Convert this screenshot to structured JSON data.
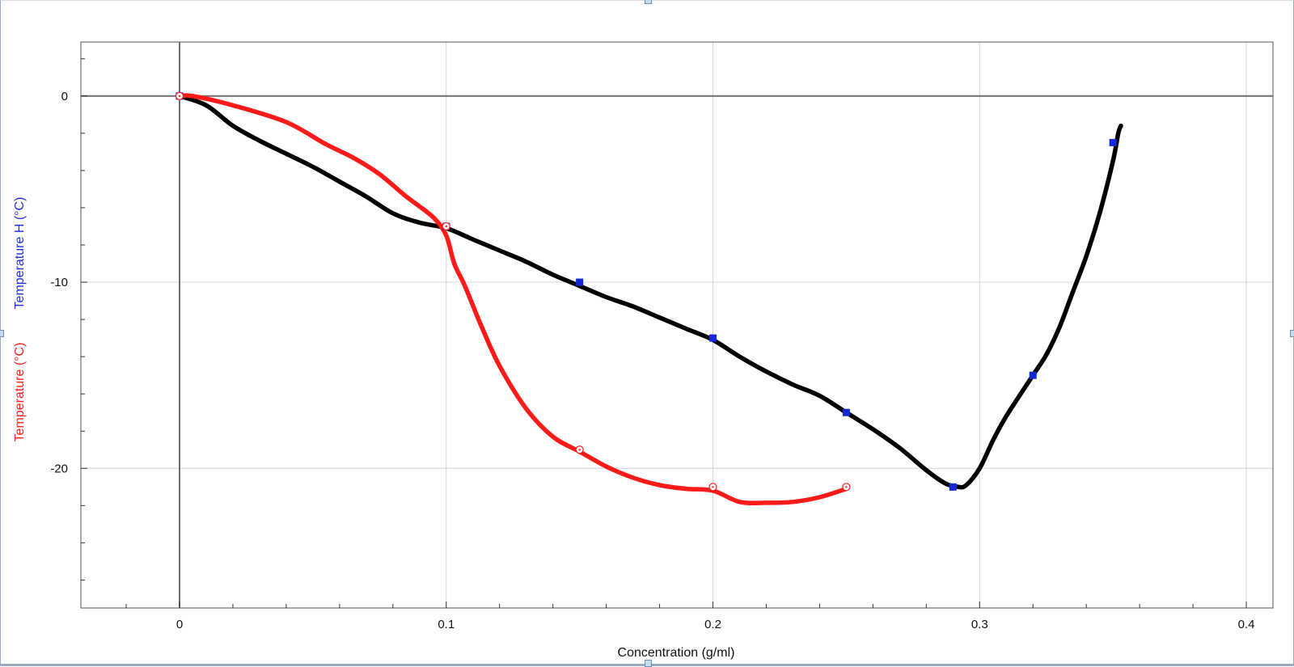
{
  "colors": {
    "red_series": "#ff1a1a",
    "black_series": "#000000",
    "marker_blue": "#1428d8",
    "ylabel_blue": "#2231dd",
    "ylabel_red": "#ff2020",
    "grid": "#d4d4d4",
    "zero_axis": "#6e6e6e",
    "frame": "#555555"
  },
  "icons": {
    "square_marker": "blue-square-marker-icon",
    "circle_marker": "red-circle-dot-marker-icon",
    "selection_handle": "selection-handle-icon"
  },
  "chart_data": {
    "type": "line",
    "xlabel": "Concentration (g/ml)",
    "ylabels": [
      "Temperature H (°C)",
      "Temperature (°C)"
    ],
    "xlim": [
      -0.037,
      0.41
    ],
    "ylim": [
      -27.5,
      2.9
    ],
    "x_ticks": [
      0,
      0.1,
      0.2,
      0.3,
      0.4
    ],
    "x_tick_labels": [
      "0",
      "0.1",
      "0.2",
      "0.3",
      "0.4"
    ],
    "x_minor_ticks": [
      -0.02,
      0.02,
      0.04,
      0.06,
      0.08,
      0.12,
      0.14,
      0.16,
      0.18,
      0.22,
      0.24,
      0.26,
      0.28,
      0.32,
      0.34,
      0.36,
      0.38
    ],
    "y_ticks": [
      0,
      -10,
      -20
    ],
    "y_tick_labels": [
      "0",
      "-10",
      "-20"
    ],
    "y_minor_ticks": [
      2,
      -2,
      -4,
      -6,
      -8,
      -12,
      -14,
      -16,
      -18,
      -22,
      -24,
      -26
    ],
    "grid": true,
    "series": [
      {
        "label_color": "ylabel_blue",
        "color": "black_series",
        "marker": "square",
        "marker_color": "marker_blue",
        "points": [
          [
            0,
            0
          ],
          [
            0.1,
            -7
          ],
          [
            0.15,
            -10
          ],
          [
            0.2,
            -13
          ],
          [
            0.25,
            -17
          ],
          [
            0.29,
            -21
          ],
          [
            0.32,
            -15
          ],
          [
            0.35,
            -2.5
          ]
        ],
        "curve": [
          [
            0,
            0
          ],
          [
            0.01,
            -0.5
          ],
          [
            0.02,
            -1.6
          ],
          [
            0.03,
            -2.4
          ],
          [
            0.04,
            -3.1
          ],
          [
            0.05,
            -3.8
          ],
          [
            0.06,
            -4.6
          ],
          [
            0.07,
            -5.4
          ],
          [
            0.08,
            -6.3
          ],
          [
            0.09,
            -6.8
          ],
          [
            0.1,
            -7.1
          ],
          [
            0.11,
            -7.7
          ],
          [
            0.12,
            -8.3
          ],
          [
            0.13,
            -8.9
          ],
          [
            0.14,
            -9.6
          ],
          [
            0.15,
            -10.2
          ],
          [
            0.16,
            -10.8
          ],
          [
            0.17,
            -11.3
          ],
          [
            0.18,
            -11.9
          ],
          [
            0.19,
            -12.5
          ],
          [
            0.2,
            -13.1
          ],
          [
            0.21,
            -14
          ],
          [
            0.22,
            -14.8
          ],
          [
            0.23,
            -15.5
          ],
          [
            0.24,
            -16.1
          ],
          [
            0.25,
            -17
          ],
          [
            0.26,
            -17.9
          ],
          [
            0.27,
            -18.9
          ],
          [
            0.28,
            -20.1
          ],
          [
            0.287,
            -20.8
          ],
          [
            0.292,
            -21
          ],
          [
            0.295,
            -20.9
          ],
          [
            0.3,
            -20
          ],
          [
            0.305,
            -18.5
          ],
          [
            0.31,
            -17.2
          ],
          [
            0.32,
            -15
          ],
          [
            0.325,
            -13.9
          ],
          [
            0.33,
            -12.4
          ],
          [
            0.335,
            -10.5
          ],
          [
            0.34,
            -8.6
          ],
          [
            0.345,
            -6.3
          ],
          [
            0.35,
            -3.5
          ],
          [
            0.352,
            -2
          ],
          [
            0.353,
            -1.6
          ]
        ]
      },
      {
        "label_color": "ylabel_red",
        "color": "red_series",
        "marker": "circle",
        "marker_color": "red_series",
        "points": [
          [
            0,
            0
          ],
          [
            0.1,
            -7
          ],
          [
            0.15,
            -19
          ],
          [
            0.2,
            -21
          ],
          [
            0.25,
            -21
          ]
        ],
        "curve": [
          [
            0,
            0
          ],
          [
            0.005,
            0
          ],
          [
            0.02,
            -0.5
          ],
          [
            0.04,
            -1.4
          ],
          [
            0.055,
            -2.6
          ],
          [
            0.065,
            -3.3
          ],
          [
            0.075,
            -4.2
          ],
          [
            0.085,
            -5.4
          ],
          [
            0.095,
            -6.5
          ],
          [
            0.1,
            -7.5
          ],
          [
            0.103,
            -9
          ],
          [
            0.107,
            -10.2
          ],
          [
            0.113,
            -12.3
          ],
          [
            0.12,
            -14.5
          ],
          [
            0.13,
            -16.8
          ],
          [
            0.14,
            -18.3
          ],
          [
            0.15,
            -19.1
          ],
          [
            0.16,
            -19.9
          ],
          [
            0.17,
            -20.5
          ],
          [
            0.18,
            -20.9
          ],
          [
            0.19,
            -21.1
          ],
          [
            0.2,
            -21.2
          ],
          [
            0.21,
            -21.8
          ],
          [
            0.22,
            -21.85
          ],
          [
            0.23,
            -21.8
          ],
          [
            0.24,
            -21.55
          ],
          [
            0.25,
            -21.1
          ]
        ]
      }
    ]
  }
}
